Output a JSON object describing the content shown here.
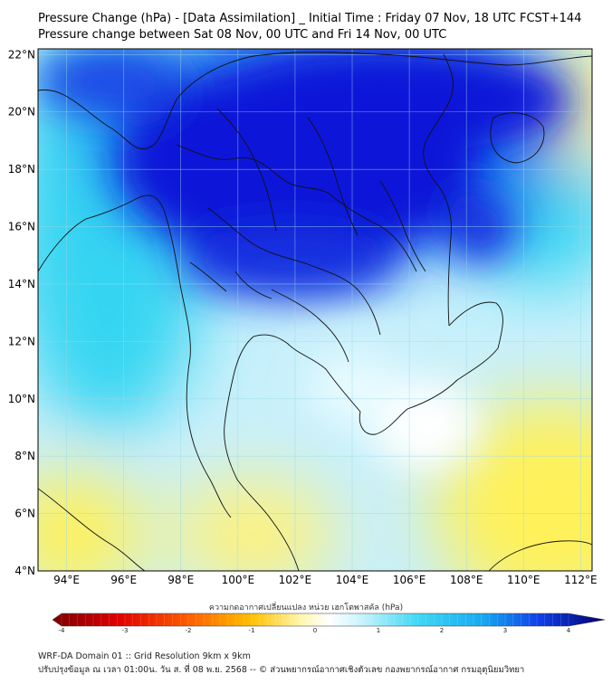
{
  "header": {
    "title_line1": "Pressure Change (hPa) - [Data Assimilation] _ Initial Time : Friday 07 Nov, 18 UTC FCST+144",
    "title_line2": "Pressure change between Sat 08 Nov, 00 UTC and Fri 14 Nov, 00 UTC"
  },
  "map": {
    "lat_labels": [
      "22°N",
      "20°N",
      "18°N",
      "16°N",
      "14°N",
      "12°N",
      "10°N",
      "8°N",
      "6°N",
      "4°N"
    ],
    "lon_labels": [
      "94°E",
      "96°E",
      "98°E",
      "100°E",
      "102°E",
      "104°E",
      "106°E",
      "108°E",
      "110°E",
      "112°E"
    ],
    "lat_range": [
      4,
      22.2
    ],
    "lon_range": [
      93,
      112.4
    ],
    "field": "pressure change (hPa)",
    "colors": {
      "strong_fall": "#7a0000",
      "fall": "#ffd700",
      "neutral": "#ffffff",
      "rise": "#38d8f0",
      "strong_rise": "#0a10d8",
      "border_line": "#111111"
    }
  },
  "colorbar": {
    "title": "ความกดอากาศเปลี่ยนแปลง หน่วย เฮกโตพาสคัล (hPa)",
    "min": -4,
    "max": 4,
    "tick_labels": [
      "-4",
      "-3",
      "-2",
      "-1",
      "0",
      "1",
      "2",
      "3",
      "4"
    ]
  },
  "footer": {
    "line1": "WRF-DA Domain 01 :: Grid Resolution 9km x 9km",
    "line2": "ปรับปรุงข้อมูล ณ เวลา 01:00น. วัน ส. ที่ 08 พ.ย. 2568 -- © ส่วนพยากรณ์อากาศเชิงตัวเลข กองพยากรณ์อากาศ กรมอุตุนิยมวิทยา"
  }
}
